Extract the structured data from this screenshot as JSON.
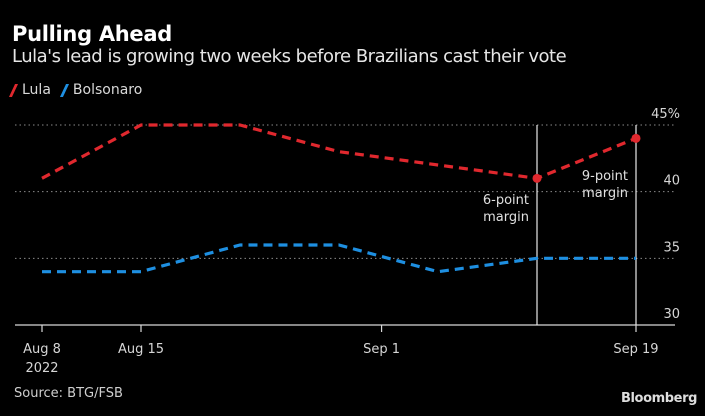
{
  "chart_data": {
    "type": "line",
    "title": "Pulling Ahead",
    "subtitle": "Lula's lead is growing two weeks before Brazilians cast their vote",
    "x": [
      "2022-08-08",
      "2022-08-15",
      "2022-08-22",
      "2022-08-29",
      "2022-09-05",
      "2022-09-12",
      "2022-09-19"
    ],
    "series": [
      {
        "name": "Lula",
        "color": "#e0282e",
        "values": [
          41,
          45,
          45,
          43,
          42,
          41,
          44
        ]
      },
      {
        "name": "Bolsonaro",
        "color": "#1e8fe1",
        "values": [
          34,
          34,
          36,
          36,
          34,
          35,
          35
        ]
      }
    ],
    "xticks": [
      {
        "label": "Aug 8",
        "sublabel": "2022",
        "x_index": 0
      },
      {
        "label": "Aug 15",
        "x_index": 1
      },
      {
        "label": "Sep 1",
        "x_index": 3.43
      },
      {
        "label": "Sep 19",
        "x_index": 6
      }
    ],
    "yticks": [
      {
        "value": 45,
        "label": "45%"
      },
      {
        "value": 40,
        "label": "40"
      },
      {
        "value": 35,
        "label": "35"
      },
      {
        "value": 30,
        "label": "30"
      }
    ],
    "ylim": [
      30,
      45
    ],
    "xlabel": "",
    "ylabel": "",
    "grid": true,
    "legend_position": "top-left",
    "annotations": [
      {
        "text_line1": "6-point",
        "text_line2": "margin",
        "x_index": 5,
        "marker_series": "Lula"
      },
      {
        "text_line1": "9-point",
        "text_line2": "margin",
        "x_index": 6,
        "marker_series": "Lula"
      }
    ],
    "source": "Source: BTG/FSB",
    "brand": "Bloomberg"
  }
}
